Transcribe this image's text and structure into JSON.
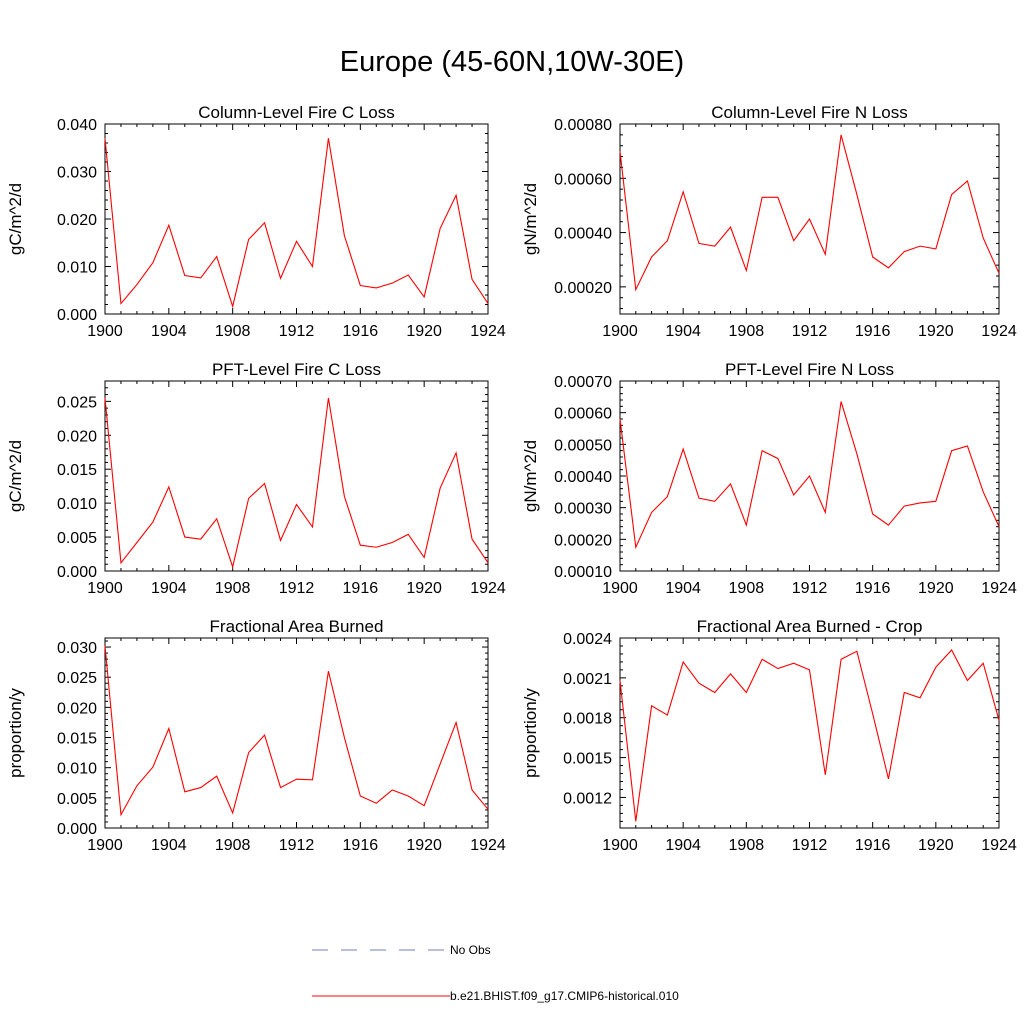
{
  "page": {
    "title": "Europe (45-60N,10W-30E)"
  },
  "colors": {
    "model_line": "#ff0000",
    "obs_line": "#6f7fb4",
    "axis": "#000000"
  },
  "chart_data": [
    {
      "type": "line",
      "title": "Column-Level Fire C Loss",
      "ylabel": "gC/m^2/d",
      "xlabel": "",
      "xlim": [
        1900,
        1924
      ],
      "ylim": [
        0,
        0.04
      ],
      "xticks": [
        1900,
        1904,
        1908,
        1912,
        1916,
        1920,
        1924
      ],
      "xtick_labels": [
        "1900",
        "1904",
        "1908",
        "1912",
        "1916",
        "1920",
        "1924"
      ],
      "yticks": [
        0,
        0.01,
        0.02,
        0.03,
        0.04
      ],
      "ytick_labels": [
        "0.000",
        "0.010",
        "0.020",
        "0.030",
        "0.040"
      ],
      "x": [
        1900,
        1901,
        1902,
        1903,
        1904,
        1905,
        1906,
        1907,
        1908,
        1909,
        1910,
        1911,
        1912,
        1913,
        1914,
        1915,
        1916,
        1917,
        1918,
        1919,
        1920,
        1921,
        1922,
        1923,
        1924
      ],
      "series": [
        {
          "name": "b.e21.BHIST.f09_g17.CMIP6-historical.010",
          "values": [
            0.037,
            0.0022,
            0.0062,
            0.0108,
            0.0187,
            0.0081,
            0.0076,
            0.0121,
            0.0016,
            0.0157,
            0.0192,
            0.0075,
            0.0153,
            0.01,
            0.037,
            0.0165,
            0.006,
            0.0055,
            0.0065,
            0.0082,
            0.0036,
            0.018,
            0.025,
            0.0073,
            0.0022
          ]
        }
      ]
    },
    {
      "type": "line",
      "title": "Column-Level Fire N Loss",
      "ylabel": "gN/m^2/d",
      "xlabel": "",
      "xlim": [
        1900,
        1924
      ],
      "ylim": [
        0.0001,
        0.0008
      ],
      "xticks": [
        1900,
        1904,
        1908,
        1912,
        1916,
        1920,
        1924
      ],
      "xtick_labels": [
        "1900",
        "1904",
        "1908",
        "1912",
        "1916",
        "1920",
        "1924"
      ],
      "yticks": [
        0.0002,
        0.0004,
        0.0006,
        0.0008
      ],
      "ytick_labels": [
        "0.00020",
        "0.00040",
        "0.00060",
        "0.00080"
      ],
      "x": [
        1900,
        1901,
        1902,
        1903,
        1904,
        1905,
        1906,
        1907,
        1908,
        1909,
        1910,
        1911,
        1912,
        1913,
        1914,
        1915,
        1916,
        1917,
        1918,
        1919,
        1920,
        1921,
        1922,
        1923,
        1924
      ],
      "series": [
        {
          "name": "b.e21.BHIST.f09_g17.CMIP6-historical.010",
          "values": [
            0.0007,
            0.00019,
            0.00031,
            0.00037,
            0.00055,
            0.00036,
            0.00035,
            0.00042,
            0.00026,
            0.00053,
            0.00053,
            0.00037,
            0.00045,
            0.00032,
            0.00076,
            0.00054,
            0.00031,
            0.00027,
            0.00033,
            0.00035,
            0.00034,
            0.00054,
            0.00059,
            0.00038,
            0.00025
          ]
        }
      ]
    },
    {
      "type": "line",
      "title": "PFT-Level Fire C Loss",
      "ylabel": "gC/m^2/d",
      "xlabel": "",
      "xlim": [
        1900,
        1924
      ],
      "ylim": [
        0,
        0.028
      ],
      "xticks": [
        1900,
        1904,
        1908,
        1912,
        1916,
        1920,
        1924
      ],
      "xtick_labels": [
        "1900",
        "1904",
        "1908",
        "1912",
        "1916",
        "1920",
        "1924"
      ],
      "yticks": [
        0,
        0.005,
        0.01,
        0.015,
        0.02,
        0.025
      ],
      "ytick_labels": [
        "0.000",
        "0.005",
        "0.010",
        "0.015",
        "0.020",
        "0.025"
      ],
      "x": [
        1900,
        1901,
        1902,
        1903,
        1904,
        1905,
        1906,
        1907,
        1908,
        1909,
        1910,
        1911,
        1912,
        1913,
        1914,
        1915,
        1916,
        1917,
        1918,
        1919,
        1920,
        1921,
        1922,
        1923,
        1924
      ],
      "series": [
        {
          "name": "b.e21.BHIST.f09_g17.CMIP6-historical.010",
          "values": [
            0.0255,
            0.0012,
            0.0042,
            0.0072,
            0.0124,
            0.005,
            0.0047,
            0.0077,
            0.0006,
            0.0107,
            0.0129,
            0.0045,
            0.0098,
            0.0065,
            0.0255,
            0.011,
            0.0038,
            0.0035,
            0.0042,
            0.0054,
            0.002,
            0.0122,
            0.0174,
            0.0047,
            0.0012
          ]
        }
      ]
    },
    {
      "type": "line",
      "title": "PFT-Level Fire N Loss",
      "ylabel": "gN/m^2/d",
      "xlabel": "",
      "xlim": [
        1900,
        1924
      ],
      "ylim": [
        0.0001,
        0.0007
      ],
      "xticks": [
        1900,
        1904,
        1908,
        1912,
        1916,
        1920,
        1924
      ],
      "xtick_labels": [
        "1900",
        "1904",
        "1908",
        "1912",
        "1916",
        "1920",
        "1924"
      ],
      "yticks": [
        0.0001,
        0.0002,
        0.0003,
        0.0004,
        0.0005,
        0.0006,
        0.0007
      ],
      "ytick_labels": [
        "0.00010",
        "0.00020",
        "0.00030",
        "0.00040",
        "0.00050",
        "0.00060",
        "0.00070"
      ],
      "x": [
        1900,
        1901,
        1902,
        1903,
        1904,
        1905,
        1906,
        1907,
        1908,
        1909,
        1910,
        1911,
        1912,
        1913,
        1914,
        1915,
        1916,
        1917,
        1918,
        1919,
        1920,
        1921,
        1922,
        1923,
        1924
      ],
      "series": [
        {
          "name": "b.e21.BHIST.f09_g17.CMIP6-historical.010",
          "values": [
            0.00058,
            0.000175,
            0.000285,
            0.000335,
            0.000485,
            0.00033,
            0.00032,
            0.000375,
            0.000245,
            0.00048,
            0.000455,
            0.00034,
            0.0004,
            0.000285,
            0.000635,
            0.00047,
            0.00028,
            0.000245,
            0.000305,
            0.000315,
            0.00032,
            0.00048,
            0.000495,
            0.00035,
            0.00024
          ]
        }
      ]
    },
    {
      "type": "line",
      "title": "Fractional Area Burned",
      "ylabel": "proportion/y",
      "xlabel": "",
      "xlim": [
        1900,
        1924
      ],
      "ylim": [
        0,
        0.0315
      ],
      "xticks": [
        1900,
        1904,
        1908,
        1912,
        1916,
        1920,
        1924
      ],
      "xtick_labels": [
        "1900",
        "1904",
        "1908",
        "1912",
        "1916",
        "1920",
        "1924"
      ],
      "yticks": [
        0,
        0.005,
        0.01,
        0.015,
        0.02,
        0.025,
        0.03
      ],
      "ytick_labels": [
        "0.000",
        "0.005",
        "0.010",
        "0.015",
        "0.020",
        "0.025",
        "0.030"
      ],
      "x": [
        1900,
        1901,
        1902,
        1903,
        1904,
        1905,
        1906,
        1907,
        1908,
        1909,
        1910,
        1911,
        1912,
        1913,
        1914,
        1915,
        1916,
        1917,
        1918,
        1919,
        1920,
        1921,
        1922,
        1923,
        1924
      ],
      "series": [
        {
          "name": "b.e21.BHIST.f09_g17.CMIP6-historical.010",
          "values": [
            0.0302,
            0.0022,
            0.007,
            0.0101,
            0.0165,
            0.006,
            0.0067,
            0.0086,
            0.0025,
            0.0125,
            0.0154,
            0.0067,
            0.0081,
            0.008,
            0.026,
            0.015,
            0.0053,
            0.0041,
            0.0063,
            0.0053,
            0.0037,
            0.0106,
            0.0175,
            0.0063,
            0.0031
          ]
        }
      ]
    },
    {
      "type": "line",
      "title": "Fractional Area Burned - Crop",
      "ylabel": "proportion/y",
      "xlabel": "",
      "xlim": [
        1900,
        1924
      ],
      "ylim": [
        0.00097,
        0.0024
      ],
      "xticks": [
        1900,
        1904,
        1908,
        1912,
        1916,
        1920,
        1924
      ],
      "xtick_labels": [
        "1900",
        "1904",
        "1908",
        "1912",
        "1916",
        "1920",
        "1924"
      ],
      "yticks": [
        0.0012,
        0.0015,
        0.0018,
        0.0021,
        0.0024
      ],
      "ytick_labels": [
        "0.0012",
        "0.0015",
        "0.0018",
        "0.0021",
        "0.0024"
      ],
      "x": [
        1900,
        1901,
        1902,
        1903,
        1904,
        1905,
        1906,
        1907,
        1908,
        1909,
        1910,
        1911,
        1912,
        1913,
        1914,
        1915,
        1916,
        1917,
        1918,
        1919,
        1920,
        1921,
        1922,
        1923,
        1924
      ],
      "series": [
        {
          "name": "b.e21.BHIST.f09_g17.CMIP6-historical.010",
          "values": [
            0.00208,
            0.00102,
            0.00189,
            0.00182,
            0.00222,
            0.00206,
            0.00199,
            0.00213,
            0.00199,
            0.00224,
            0.00217,
            0.00221,
            0.00216,
            0.00137,
            0.00224,
            0.0023,
            0.00183,
            0.00134,
            0.00199,
            0.00195,
            0.00218,
            0.00231,
            0.00208,
            0.00221,
            0.00178
          ]
        }
      ]
    }
  ],
  "legend": {
    "items": [
      {
        "label": "No Obs",
        "style": "dashed",
        "color": "#6f7fb4"
      },
      {
        "label": "b.e21.BHIST.f09_g17.CMIP6-historical.010",
        "style": "solid",
        "color": "#ff0000"
      }
    ]
  }
}
